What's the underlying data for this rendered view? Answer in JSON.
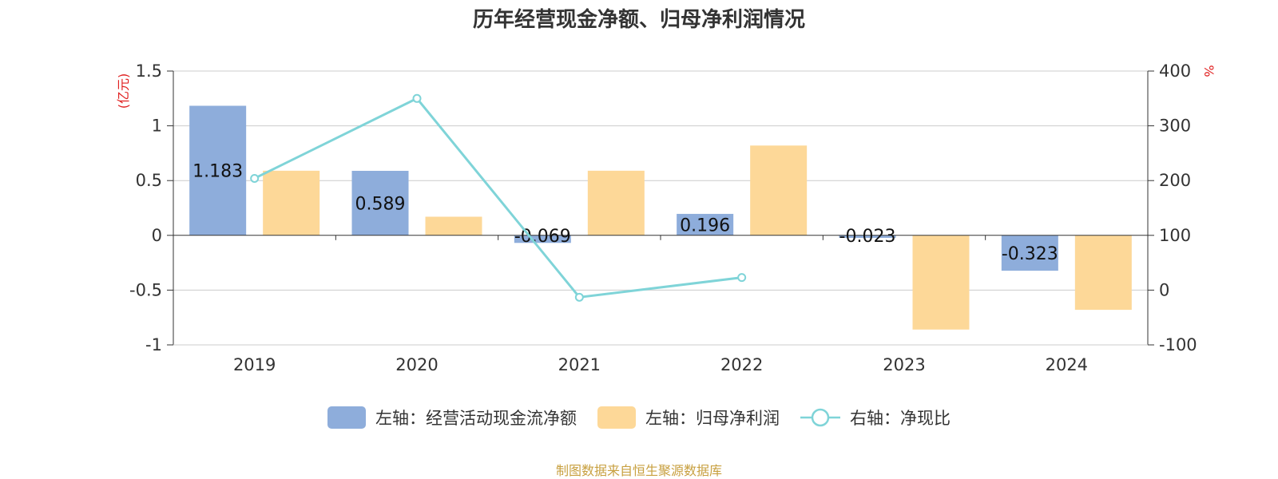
{
  "title": "历年经营现金净额、归母净利润情况",
  "source": "制图数据来自恒生聚源数据库",
  "units": {
    "left": "(亿元)",
    "right": "%"
  },
  "colors": {
    "cash": "#8eaddb",
    "profit": "#fdd898",
    "ratio": "#7fd4d8",
    "grid": "#cccccc",
    "axis": "#333333"
  },
  "legend": [
    {
      "label": "左轴：经营活动现金流净额",
      "key": "cash",
      "kind": "bar"
    },
    {
      "label": "左轴：归母净利润",
      "key": "profit",
      "kind": "bar"
    },
    {
      "label": "右轴：净现比",
      "key": "ratio",
      "kind": "line"
    }
  ],
  "chart_data": {
    "type": "bar",
    "categories": [
      "2019",
      "2020",
      "2021",
      "2022",
      "2023",
      "2024"
    ],
    "series": [
      {
        "name": "左轴：经营活动现金流净额",
        "axis": "left",
        "type": "bar",
        "values": [
          1.183,
          0.589,
          -0.069,
          0.196,
          -0.023,
          -0.323
        ],
        "labels": [
          "1.183",
          "0.589",
          "-0.069",
          "0.196",
          "-0.023",
          "-0.323"
        ]
      },
      {
        "name": "左轴：归母净利润",
        "axis": "left",
        "type": "bar",
        "values": [
          0.59,
          0.17,
          0.59,
          0.82,
          -0.86,
          -0.68
        ]
      },
      {
        "name": "右轴：净现比",
        "axis": "right",
        "type": "line",
        "values": [
          204,
          350,
          -13,
          23,
          null,
          null
        ]
      }
    ],
    "left_axis": {
      "min": -1,
      "max": 1.5,
      "ticks": [
        "-1",
        "-0.5",
        "0",
        "0.5",
        "1",
        "1.5"
      ]
    },
    "right_axis": {
      "min": -100,
      "max": 400,
      "ticks": [
        "-100",
        "0",
        "100",
        "200",
        "300",
        "400"
      ]
    },
    "grid": true,
    "legend_position": "bottom"
  }
}
